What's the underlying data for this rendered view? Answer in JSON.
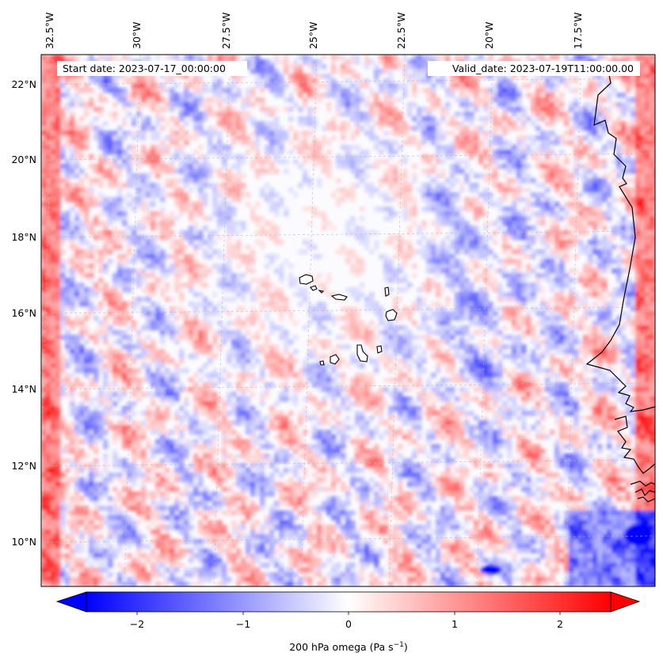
{
  "map": {
    "start_date": "Start date: 2023-07-17_00:00:00",
    "valid_date": "Valid_date: 2023-07-19T11:00:00.00",
    "lon_labels": [
      "32.5°W",
      "30°W",
      "27.5°W",
      "25°W",
      "22.5°W",
      "20°W",
      "17.5°W"
    ],
    "lat_labels": [
      "22°N",
      "20°N",
      "18°N",
      "16°N",
      "14°N",
      "12°N",
      "10°N"
    ],
    "gridlines": true,
    "field": "omega",
    "colormap": "bwr",
    "colors": {
      "negative": "#0000ff",
      "zero": "#ffffff",
      "positive": "#ff0000",
      "coast": "#000000"
    }
  },
  "colorbar": {
    "label": "200 hPa omega (Pa s",
    "label_exp": "−1",
    "label_close": ")",
    "ticks": [
      "−2",
      "−1",
      "0",
      "1",
      "2"
    ],
    "tick_values": [
      -2,
      -1,
      0,
      1,
      2
    ],
    "range": [
      -2.7,
      2.7
    ],
    "extend": "both"
  }
}
